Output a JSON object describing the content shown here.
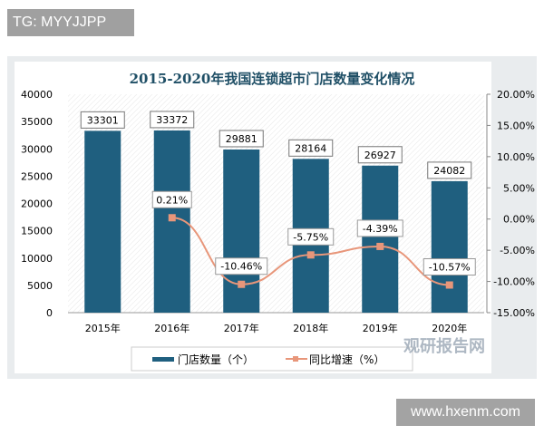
{
  "overlay_label": "TG: MYYJJPP",
  "site_label": "www.hxenm.com",
  "watermark": "观研报告网",
  "chart_data": {
    "type": "bar+line",
    "title": "2015-2020年我国连锁超市门店数量变化情况",
    "categories": [
      "2015年",
      "2016年",
      "2017年",
      "2018年",
      "2019年",
      "2020年"
    ],
    "series": [
      {
        "name": "门店数量（个）",
        "type": "bar",
        "axis": "left",
        "color": "#1f5f7f",
        "values": [
          33301,
          33372,
          29881,
          28164,
          26927,
          24082
        ],
        "labels": [
          "33301",
          "33372",
          "29881",
          "28164",
          "26927",
          "24082"
        ]
      },
      {
        "name": "同比增速（%）",
        "type": "line",
        "axis": "right",
        "color": "#e8967a",
        "values": [
          null,
          0.21,
          -10.46,
          -5.75,
          -4.39,
          -10.57
        ],
        "labels": [
          "",
          "0.21%",
          "-10.46%",
          "-5.75%",
          "-4.39%",
          "-10.57%"
        ]
      }
    ],
    "left_axis": {
      "ylim": [
        0,
        40000
      ],
      "ticks": [
        "0",
        "5000",
        "10000",
        "15000",
        "20000",
        "25000",
        "30000",
        "35000",
        "40000"
      ]
    },
    "right_axis": {
      "ylim": [
        -15,
        20
      ],
      "ticks": [
        "-15.00%",
        "-10.00%",
        "-5.00%",
        "0.00%",
        "5.00%",
        "10.00%",
        "15.00%",
        "20.00%"
      ]
    },
    "legend": "bottom",
    "grid": false
  }
}
